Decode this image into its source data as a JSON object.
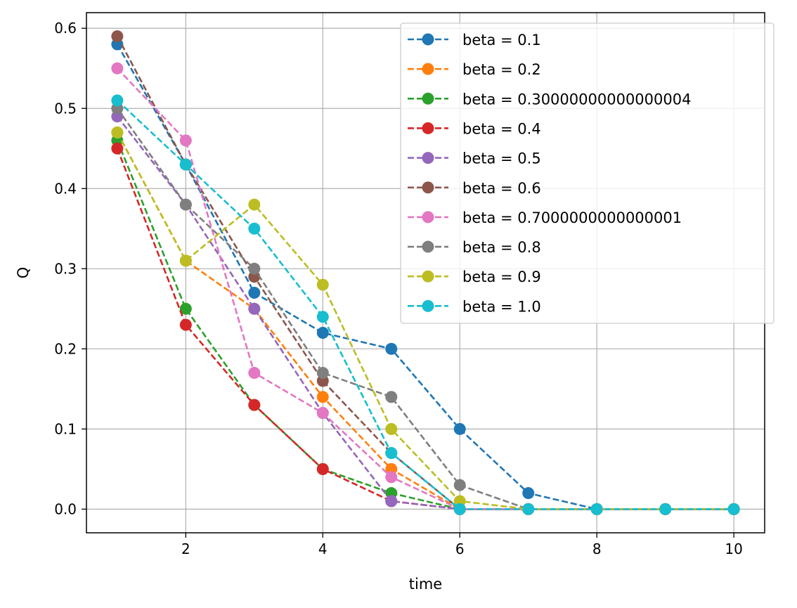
{
  "chart_data": {
    "type": "line",
    "title": "",
    "xlabel": "time",
    "ylabel": "Q",
    "xlim": [
      0.55,
      10.45
    ],
    "ylim": [
      -0.0295,
      0.6195
    ],
    "xticks": [
      2,
      4,
      6,
      8,
      10
    ],
    "yticks": [
      0.0,
      0.1,
      0.2,
      0.3,
      0.4,
      0.5,
      0.6
    ],
    "xtick_labels": [
      "2",
      "4",
      "6",
      "8",
      "10"
    ],
    "ytick_labels": [
      "0.0",
      "0.1",
      "0.2",
      "0.3",
      "0.4",
      "0.5",
      "0.6"
    ],
    "grid": true,
    "legend_position": "top-right",
    "line_style": "dashed",
    "marker": "circle",
    "x": [
      1,
      2,
      3,
      4,
      5,
      6,
      7,
      8,
      9,
      10
    ],
    "series": [
      {
        "name": "beta = 0.1",
        "color": "#1f77b4",
        "values": [
          0.58,
          0.43,
          0.27,
          0.22,
          0.2,
          0.1,
          0.02,
          0.0,
          0.0,
          0.0
        ]
      },
      {
        "name": "beta = 0.2",
        "color": "#ff7f0e",
        "values": [
          0.47,
          0.31,
          0.25,
          0.14,
          0.05,
          0.0,
          0.0,
          0.0,
          0.0,
          0.0
        ]
      },
      {
        "name": "beta = 0.30000000000000004",
        "color": "#2ca02c",
        "values": [
          0.46,
          0.25,
          0.13,
          0.05,
          0.02,
          0.0,
          0.0,
          0.0,
          0.0,
          0.0
        ]
      },
      {
        "name": "beta = 0.4",
        "color": "#d62728",
        "values": [
          0.45,
          0.23,
          0.13,
          0.05,
          0.01,
          0.0,
          0.0,
          0.0,
          0.0,
          0.0
        ]
      },
      {
        "name": "beta = 0.5",
        "color": "#9467bd",
        "values": [
          0.49,
          0.38,
          0.25,
          0.12,
          0.01,
          0.0,
          0.0,
          0.0,
          0.0,
          0.0
        ]
      },
      {
        "name": "beta = 0.6",
        "color": "#8c564b",
        "values": [
          0.59,
          0.43,
          0.29,
          0.16,
          0.07,
          0.0,
          0.0,
          0.0,
          0.0,
          0.0
        ]
      },
      {
        "name": "beta = 0.7000000000000001",
        "color": "#e377c2",
        "values": [
          0.55,
          0.46,
          0.17,
          0.12,
          0.04,
          0.0,
          0.0,
          0.0,
          0.0,
          0.0
        ]
      },
      {
        "name": "beta = 0.8",
        "color": "#7f7f7f",
        "values": [
          0.5,
          0.38,
          0.3,
          0.17,
          0.14,
          0.03,
          0.0,
          0.0,
          0.0,
          0.0
        ]
      },
      {
        "name": "beta = 0.9",
        "color": "#bcbd22",
        "values": [
          0.47,
          0.31,
          0.38,
          0.28,
          0.1,
          0.01,
          0.0,
          0.0,
          0.0,
          0.0
        ]
      },
      {
        "name": "beta = 1.0",
        "color": "#17becf",
        "values": [
          0.51,
          0.43,
          0.35,
          0.24,
          0.07,
          0.0,
          0.0,
          0.0,
          0.0,
          0.0
        ]
      }
    ]
  }
}
